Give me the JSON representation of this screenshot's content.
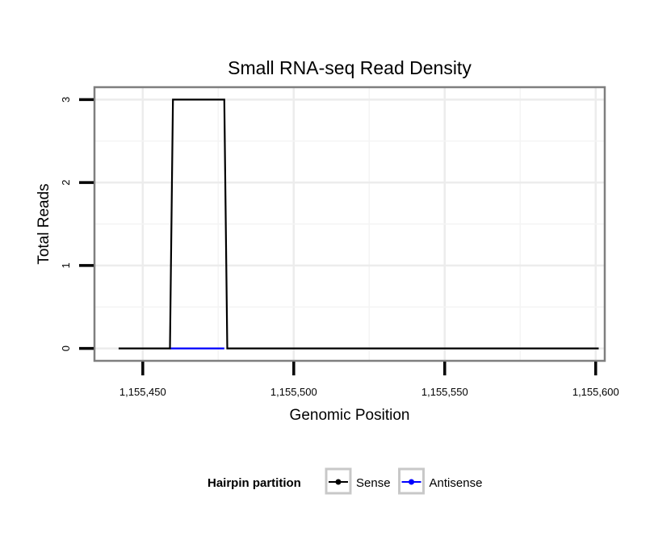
{
  "chart_data": {
    "type": "line",
    "title": "Small RNA-seq Read Density",
    "xlabel": "Genomic Position",
    "ylabel": "Total Reads",
    "xlim": [
      1155434,
      1155603
    ],
    "ylim": [
      -0.15,
      3.15
    ],
    "xticks": [
      1155450,
      1155500,
      1155550,
      1155600
    ],
    "xtick_labels": [
      "1,155,450",
      "1,155,500",
      "1,155,550",
      "1,155,600"
    ],
    "yticks": [
      0,
      1,
      2,
      3
    ],
    "ytick_labels": [
      "0",
      "1",
      "2",
      "3"
    ],
    "grid": true,
    "legend": {
      "title": "Hairpin partition",
      "position": "bottom",
      "entries": [
        {
          "name": "Sense",
          "color": "#000000"
        },
        {
          "name": "Antisense",
          "color": "#0000ff"
        }
      ]
    },
    "series": [
      {
        "name": "Antisense",
        "color": "#0000ff",
        "x": [
          1155459,
          1155477
        ],
        "y": [
          0,
          0
        ]
      },
      {
        "name": "Sense",
        "color": "#000000",
        "x": [
          1155442,
          1155459,
          1155460,
          1155477,
          1155478,
          1155601
        ],
        "y": [
          0,
          0,
          3,
          3,
          0,
          0
        ]
      }
    ]
  }
}
